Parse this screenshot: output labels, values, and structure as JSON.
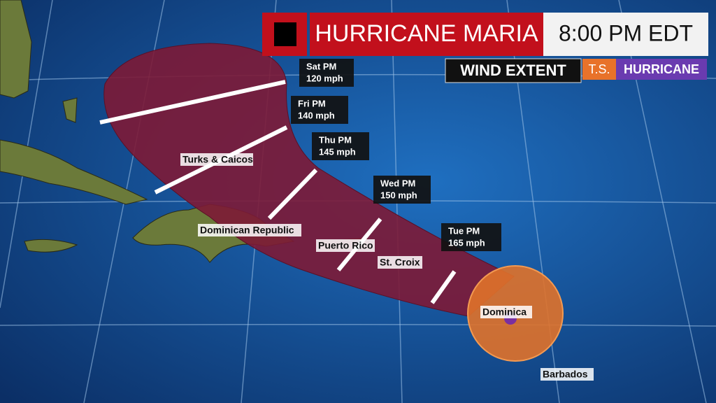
{
  "header": {
    "title": "HURRICANE MARIA",
    "time": "8:00 PM EDT"
  },
  "legend": {
    "title": "WIND EXTENT",
    "items": [
      "T.S.",
      "HURRICANE"
    ]
  },
  "forecast": [
    {
      "day": "Sat PM",
      "wind": "120 mph"
    },
    {
      "day": "Fri PM",
      "wind": "140 mph"
    },
    {
      "day": "Thu PM",
      "wind": "145 mph"
    },
    {
      "day": "Wed PM",
      "wind": "150 mph"
    },
    {
      "day": "Tue PM",
      "wind": "165 mph"
    }
  ],
  "places": [
    "Turks & Caicos",
    "Dominican Republic",
    "Puerto Rico",
    "St. Croix",
    "Dominica",
    "Barbados"
  ]
}
